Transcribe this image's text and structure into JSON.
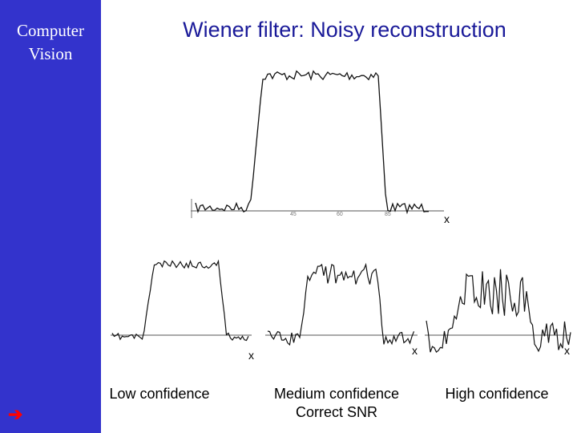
{
  "sidebar": {
    "lines": [
      "Computer",
      "Vision"
    ]
  },
  "title": "Wiener filter: Noisy reconstruction",
  "nav_icon": "right-arrow-icon",
  "colors": {
    "sidebar": "#3333cc",
    "title": "#1a1a99",
    "arrow": "#ff0000"
  },
  "top_plot": {
    "axis_label": "x",
    "tick_labels": [
      "45",
      "60",
      "85"
    ]
  },
  "bottom_plots": [
    {
      "axis_label": "x",
      "caption": [
        "Low confidence"
      ]
    },
    {
      "axis_label": "x",
      "caption": [
        "Medium confidence",
        "Correct SNR"
      ]
    },
    {
      "axis_label": "x",
      "caption": [
        "High confidence"
      ]
    }
  ]
}
